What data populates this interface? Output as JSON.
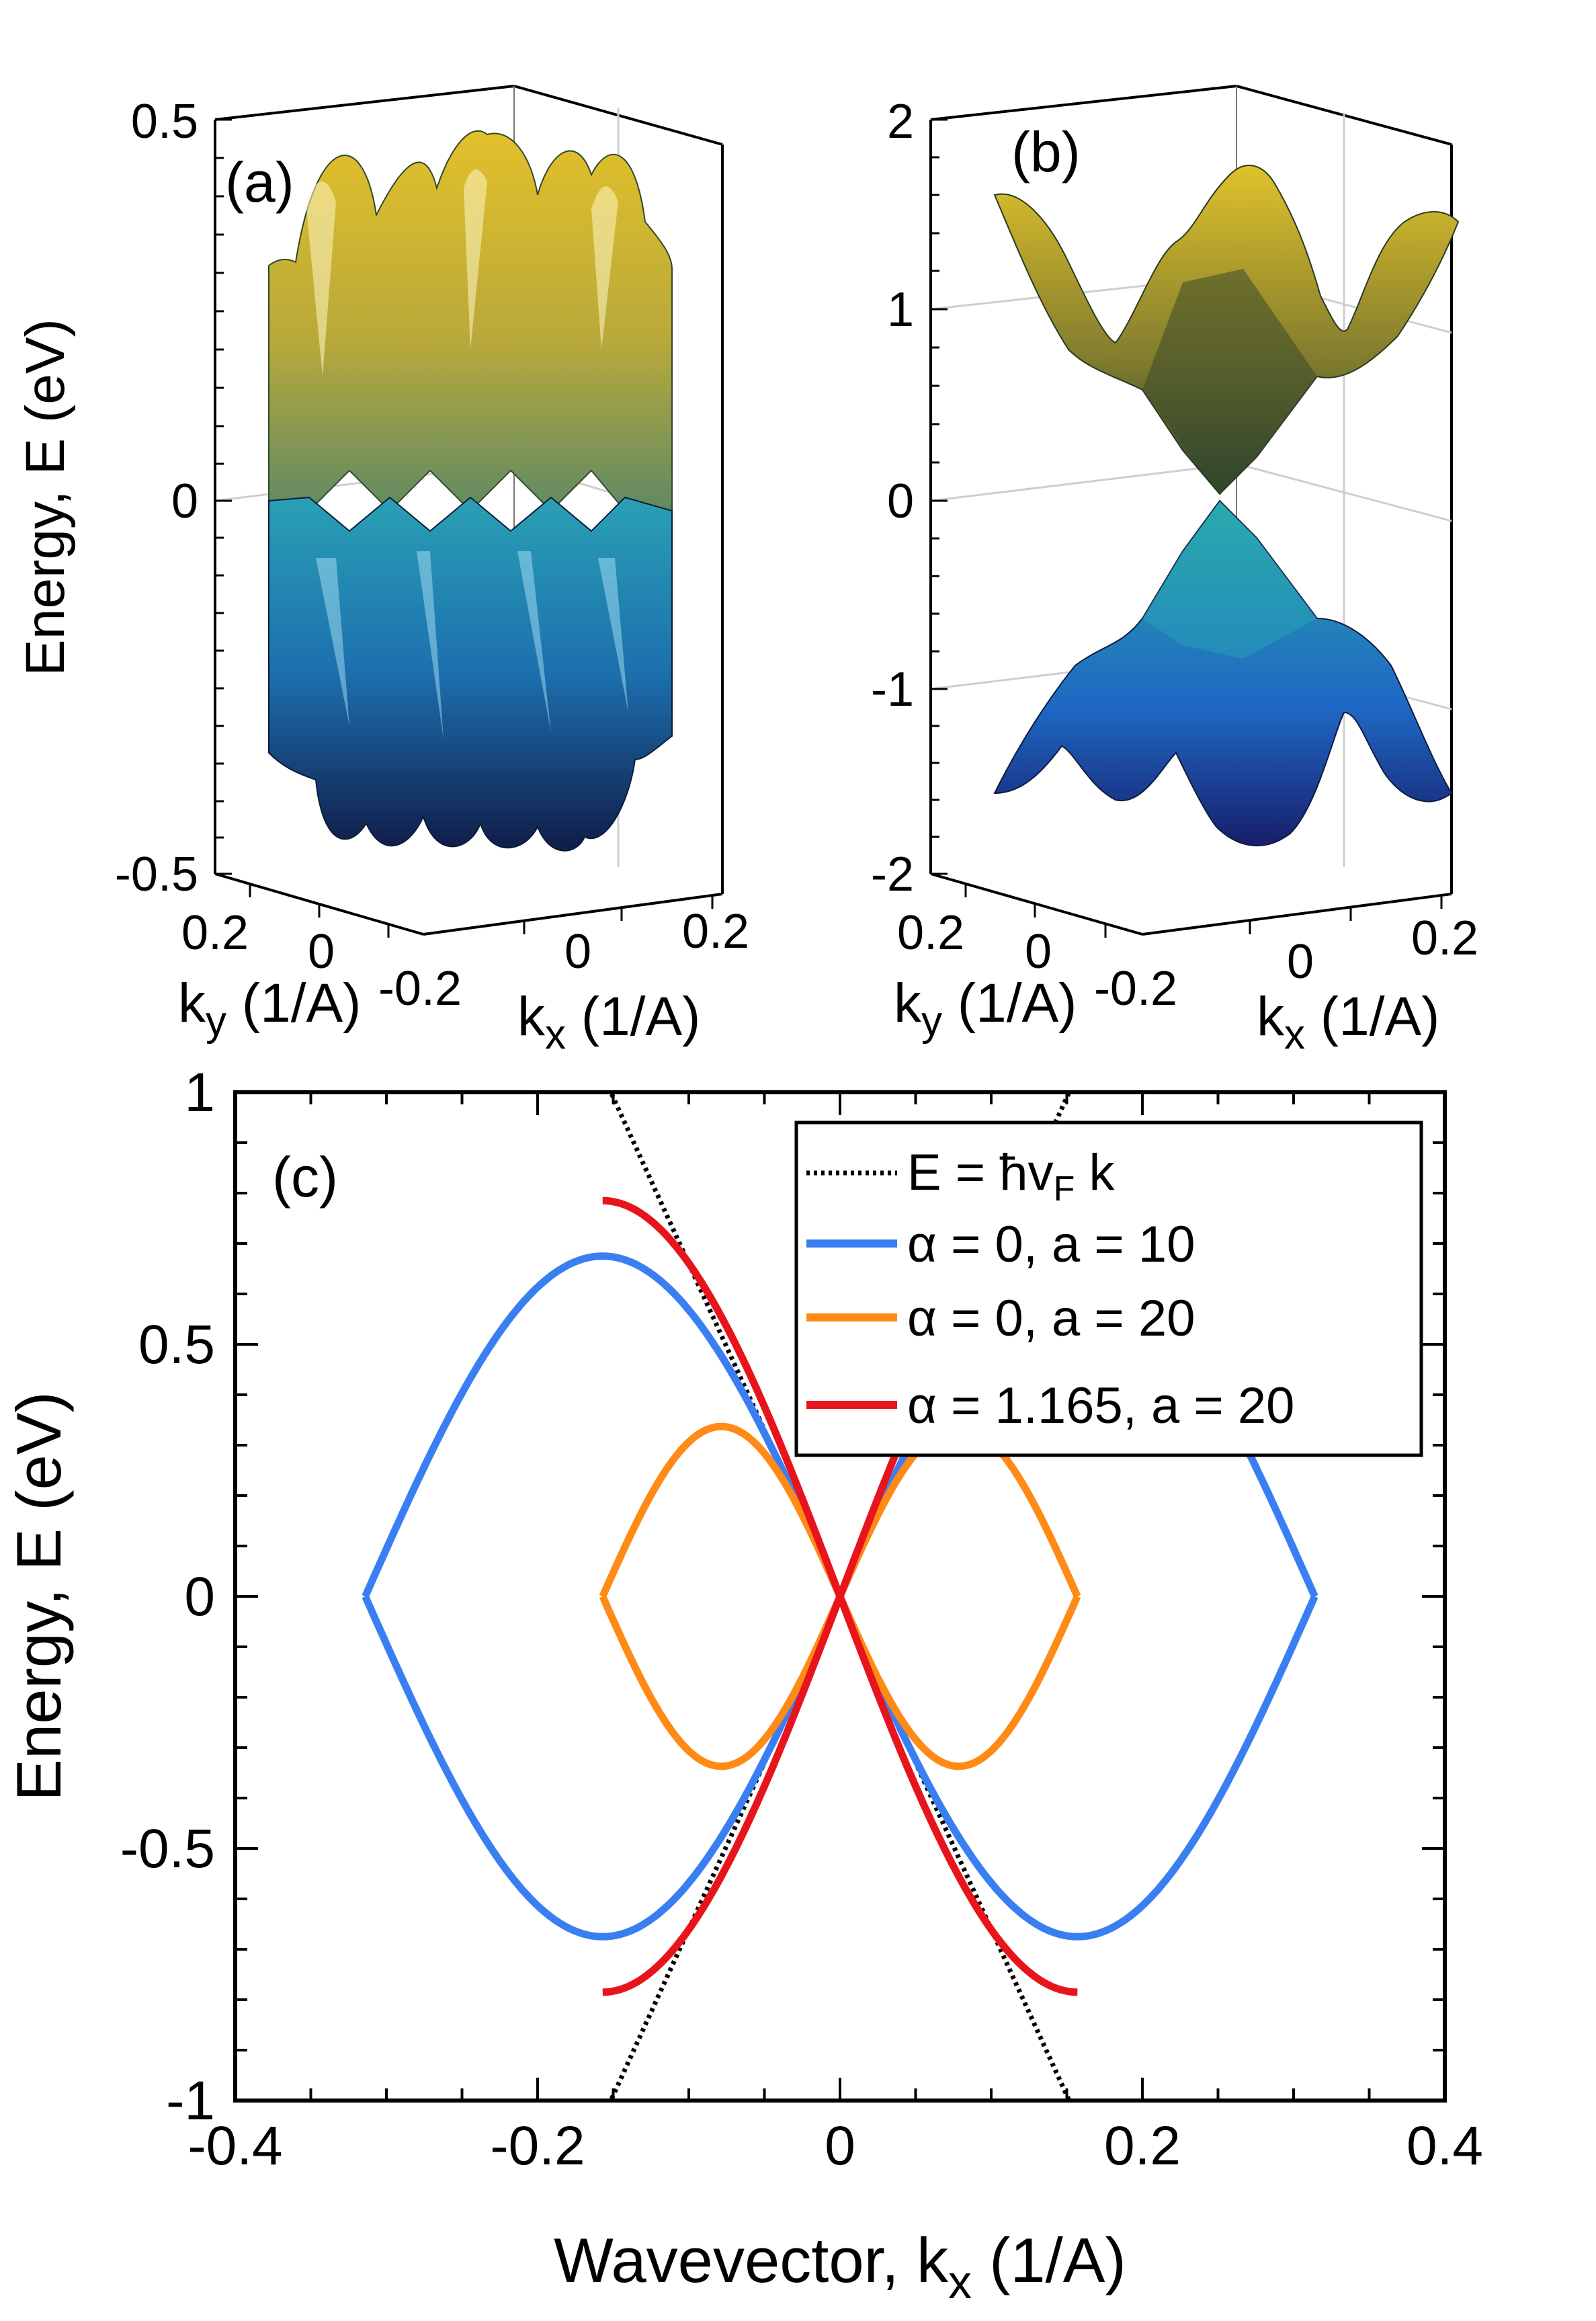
{
  "chart_data": [
    {
      "panel": "a",
      "type": "surface3d",
      "panel_label": "(a)",
      "zlabel": "Energy, E (eV)",
      "zticks": [
        "0.5",
        "0",
        "-0.5"
      ],
      "zlim": [
        -0.5,
        0.5
      ],
      "ylabel_main": "k",
      "ylabel_sub": "y",
      "ylabel_unit": " (1/A)",
      "xlabel_main": "k",
      "xlabel_sub": "x",
      "xlabel_unit": " (1/A)",
      "y_ticks": [
        "0.2",
        "0",
        "-0.2"
      ],
      "x_ticks": [
        "0",
        "0.2"
      ],
      "upper_band_color": "#d4b21e",
      "lower_band_color": "#1f4f8f"
    },
    {
      "panel": "b",
      "type": "surface3d",
      "panel_label": "(b)",
      "zticks": [
        "2",
        "1",
        "0",
        "-1",
        "-2"
      ],
      "zlim": [
        -2,
        2
      ],
      "ylabel_main": "k",
      "ylabel_sub": "y",
      "ylabel_unit": " (1/A)",
      "xlabel_main": "k",
      "xlabel_sub": "x",
      "xlabel_unit": " (1/A)",
      "y_ticks": [
        "0.2",
        "0",
        "-0.2"
      ],
      "x_ticks": [
        "0",
        "0.2"
      ],
      "upper_band_color": "#c8a81f",
      "lower_band_color": "#1f6fb0"
    },
    {
      "panel": "c",
      "type": "line",
      "panel_label": "(c)",
      "xlabel_main": "Wavevector, k",
      "xlabel_sub": "x",
      "xlabel_unit": " (1/A)",
      "ylabel": "Energy, E (eV)",
      "xlim": [
        -0.4,
        0.4
      ],
      "ylim": [
        -1,
        1
      ],
      "x_ticks": [
        -0.4,
        -0.2,
        0,
        0.2,
        0.4
      ],
      "x_tick_labels": [
        "-0.4",
        "-0.2",
        "0",
        "0.2",
        "0.4"
      ],
      "y_ticks": [
        -1,
        -0.5,
        0,
        0.5,
        1
      ],
      "y_tick_labels": [
        "-1",
        "-0.5",
        "0",
        "0.5",
        "1"
      ],
      "series": [
        {
          "name": "E  = ħv<sub>F</sub> k",
          "legend_text_a": "E  = ħv",
          "legend_sub": "F",
          "legend_text_b": " k",
          "kind": "linear",
          "slope": 6.6,
          "color": "#000000",
          "style": "dotted"
        },
        {
          "name": "α = 0, a = 10",
          "legend_text_a": "α =  0, a =  10",
          "kind": "cos",
          "amplitude": 0.675,
          "half_width": 0.314,
          "color": "#3a7ff2",
          "style": "solid"
        },
        {
          "name": "α = 0, a = 20",
          "legend_text_a": "α =  0, a =  20",
          "kind": "cos",
          "amplitude": 0.337,
          "half_width": 0.157,
          "color": "#ff8a16",
          "style": "solid"
        },
        {
          "name": "α = 1.165, a = 20",
          "legend_text_a": "α =  1.165, a =  20",
          "kind": "sin",
          "amplitude": 0.785,
          "half_width": 0.157,
          "color": "#e8141b",
          "style": "solid"
        }
      ],
      "legend_position": "top-right"
    }
  ]
}
